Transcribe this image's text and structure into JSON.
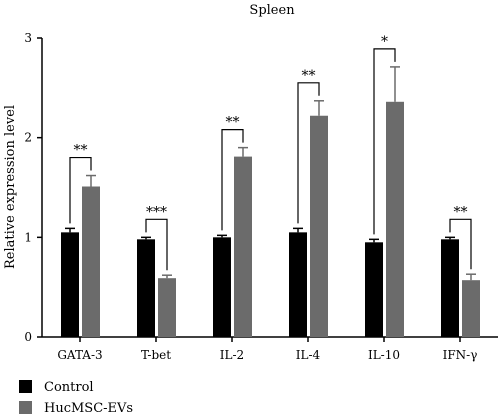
{
  "chart_data": {
    "type": "bar",
    "title": "Spleen",
    "xlabel": "",
    "ylabel": "Relative expression level",
    "ylim": [
      0,
      3
    ],
    "yticks": [
      "0",
      "1",
      "2",
      "3"
    ],
    "grid": false,
    "legend_position": "bottom-left",
    "categories": [
      "GATA-3",
      "T-bet",
      "IL-2",
      "IL-4",
      "IL-10",
      "IFN-γ"
    ],
    "series": [
      {
        "name": "Control",
        "color": "#000000",
        "values": [
          1.05,
          0.98,
          1.0,
          1.05,
          0.95,
          0.98
        ],
        "errors": [
          0.04,
          0.02,
          0.02,
          0.04,
          0.03,
          0.02
        ]
      },
      {
        "name": "HucMSC-EVs",
        "color": "#6b6b6b",
        "values": [
          1.51,
          0.59,
          1.81,
          2.22,
          2.36,
          0.57
        ],
        "errors": [
          0.11,
          0.03,
          0.09,
          0.15,
          0.35,
          0.06
        ]
      }
    ],
    "significance": [
      "**",
      "***",
      "**",
      "**",
      "*",
      "**"
    ]
  }
}
